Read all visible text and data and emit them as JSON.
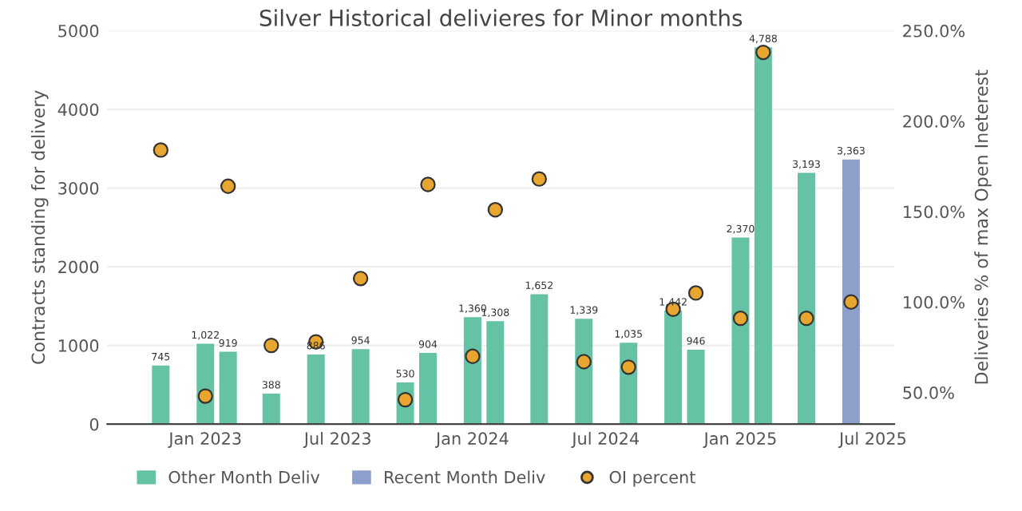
{
  "chart_data": {
    "type": "bar",
    "title": "Silver Historical delivieres for Minor months",
    "ylabel": "Contracts standing for delivery",
    "y2label": "Deliveries % of max Open Ineterest",
    "xlim": [
      "2022-08-20",
      "2025-07-30"
    ],
    "xticks": [
      {
        "value": "2023-01-01",
        "label": "Jan 2023"
      },
      {
        "value": "2023-07-01",
        "label": "Jul 2023"
      },
      {
        "value": "2024-01-01",
        "label": "Jan 2024"
      },
      {
        "value": "2024-07-01",
        "label": "Jul 2024"
      },
      {
        "value": "2025-01-01",
        "label": "Jan 2025"
      },
      {
        "value": "2025-07-01",
        "label": "Jul 2025"
      }
    ],
    "ylim": [
      0,
      5000
    ],
    "yticks": [
      0,
      1000,
      2000,
      3000,
      4000,
      5000
    ],
    "y2lim": [
      32.5,
      250
    ],
    "y2ticks": [
      {
        "value": 50,
        "label": "50.0%"
      },
      {
        "value": 100,
        "label": "100.0%"
      },
      {
        "value": 150,
        "label": "150.0%"
      },
      {
        "value": 200,
        "label": "200.0%"
      },
      {
        "value": 250,
        "label": "250.0%"
      }
    ],
    "grid": "y",
    "legend": "bottom",
    "series": [
      {
        "name": "Other Month Deliv",
        "color": "#66c2a5",
        "x": [
          "2022-11",
          "2023-01",
          "2023-02",
          "2023-04",
          "2023-06",
          "2023-08",
          "2023-10",
          "2023-11",
          "2024-01",
          "2024-02",
          "2024-04",
          "2024-06",
          "2024-08",
          "2024-10",
          "2024-11",
          "2025-01",
          "2025-02",
          "2025-04"
        ],
        "values": [
          745,
          1022,
          919,
          388,
          886,
          954,
          530,
          904,
          1360,
          1308,
          1652,
          1339,
          1035,
          1442,
          946,
          2370,
          4788,
          3193
        ],
        "value_labels": [
          "745",
          "1,022",
          "919",
          "388",
          "886",
          "954",
          "530",
          "904",
          "1,360",
          "1,308",
          "1,652",
          "1,339",
          "1,035",
          "1,442",
          "946",
          "2,370",
          "4,788",
          "3,193"
        ]
      },
      {
        "name": "Recent Month Deliv",
        "color": "#8da0cb",
        "x": [
          "2025-06"
        ],
        "values": [
          3363
        ],
        "value_labels": [
          "3,363"
        ]
      },
      {
        "name": "OI percent",
        "type": "scatter",
        "axis": "y2",
        "color": "#e8a530",
        "marker": "circle",
        "x": [
          "2022-11",
          "2023-01",
          "2023-02",
          "2023-04",
          "2023-06",
          "2023-08",
          "2023-10",
          "2023-11",
          "2024-01",
          "2024-02",
          "2024-04",
          "2024-06",
          "2024-08",
          "2024-10",
          "2024-11",
          "2025-01",
          "2025-02",
          "2025-04",
          "2025-06"
        ],
        "values": [
          184,
          48,
          164,
          76,
          78,
          113,
          46,
          165,
          70,
          151,
          168,
          67,
          64,
          96,
          105,
          91,
          238,
          91,
          100
        ]
      }
    ]
  }
}
